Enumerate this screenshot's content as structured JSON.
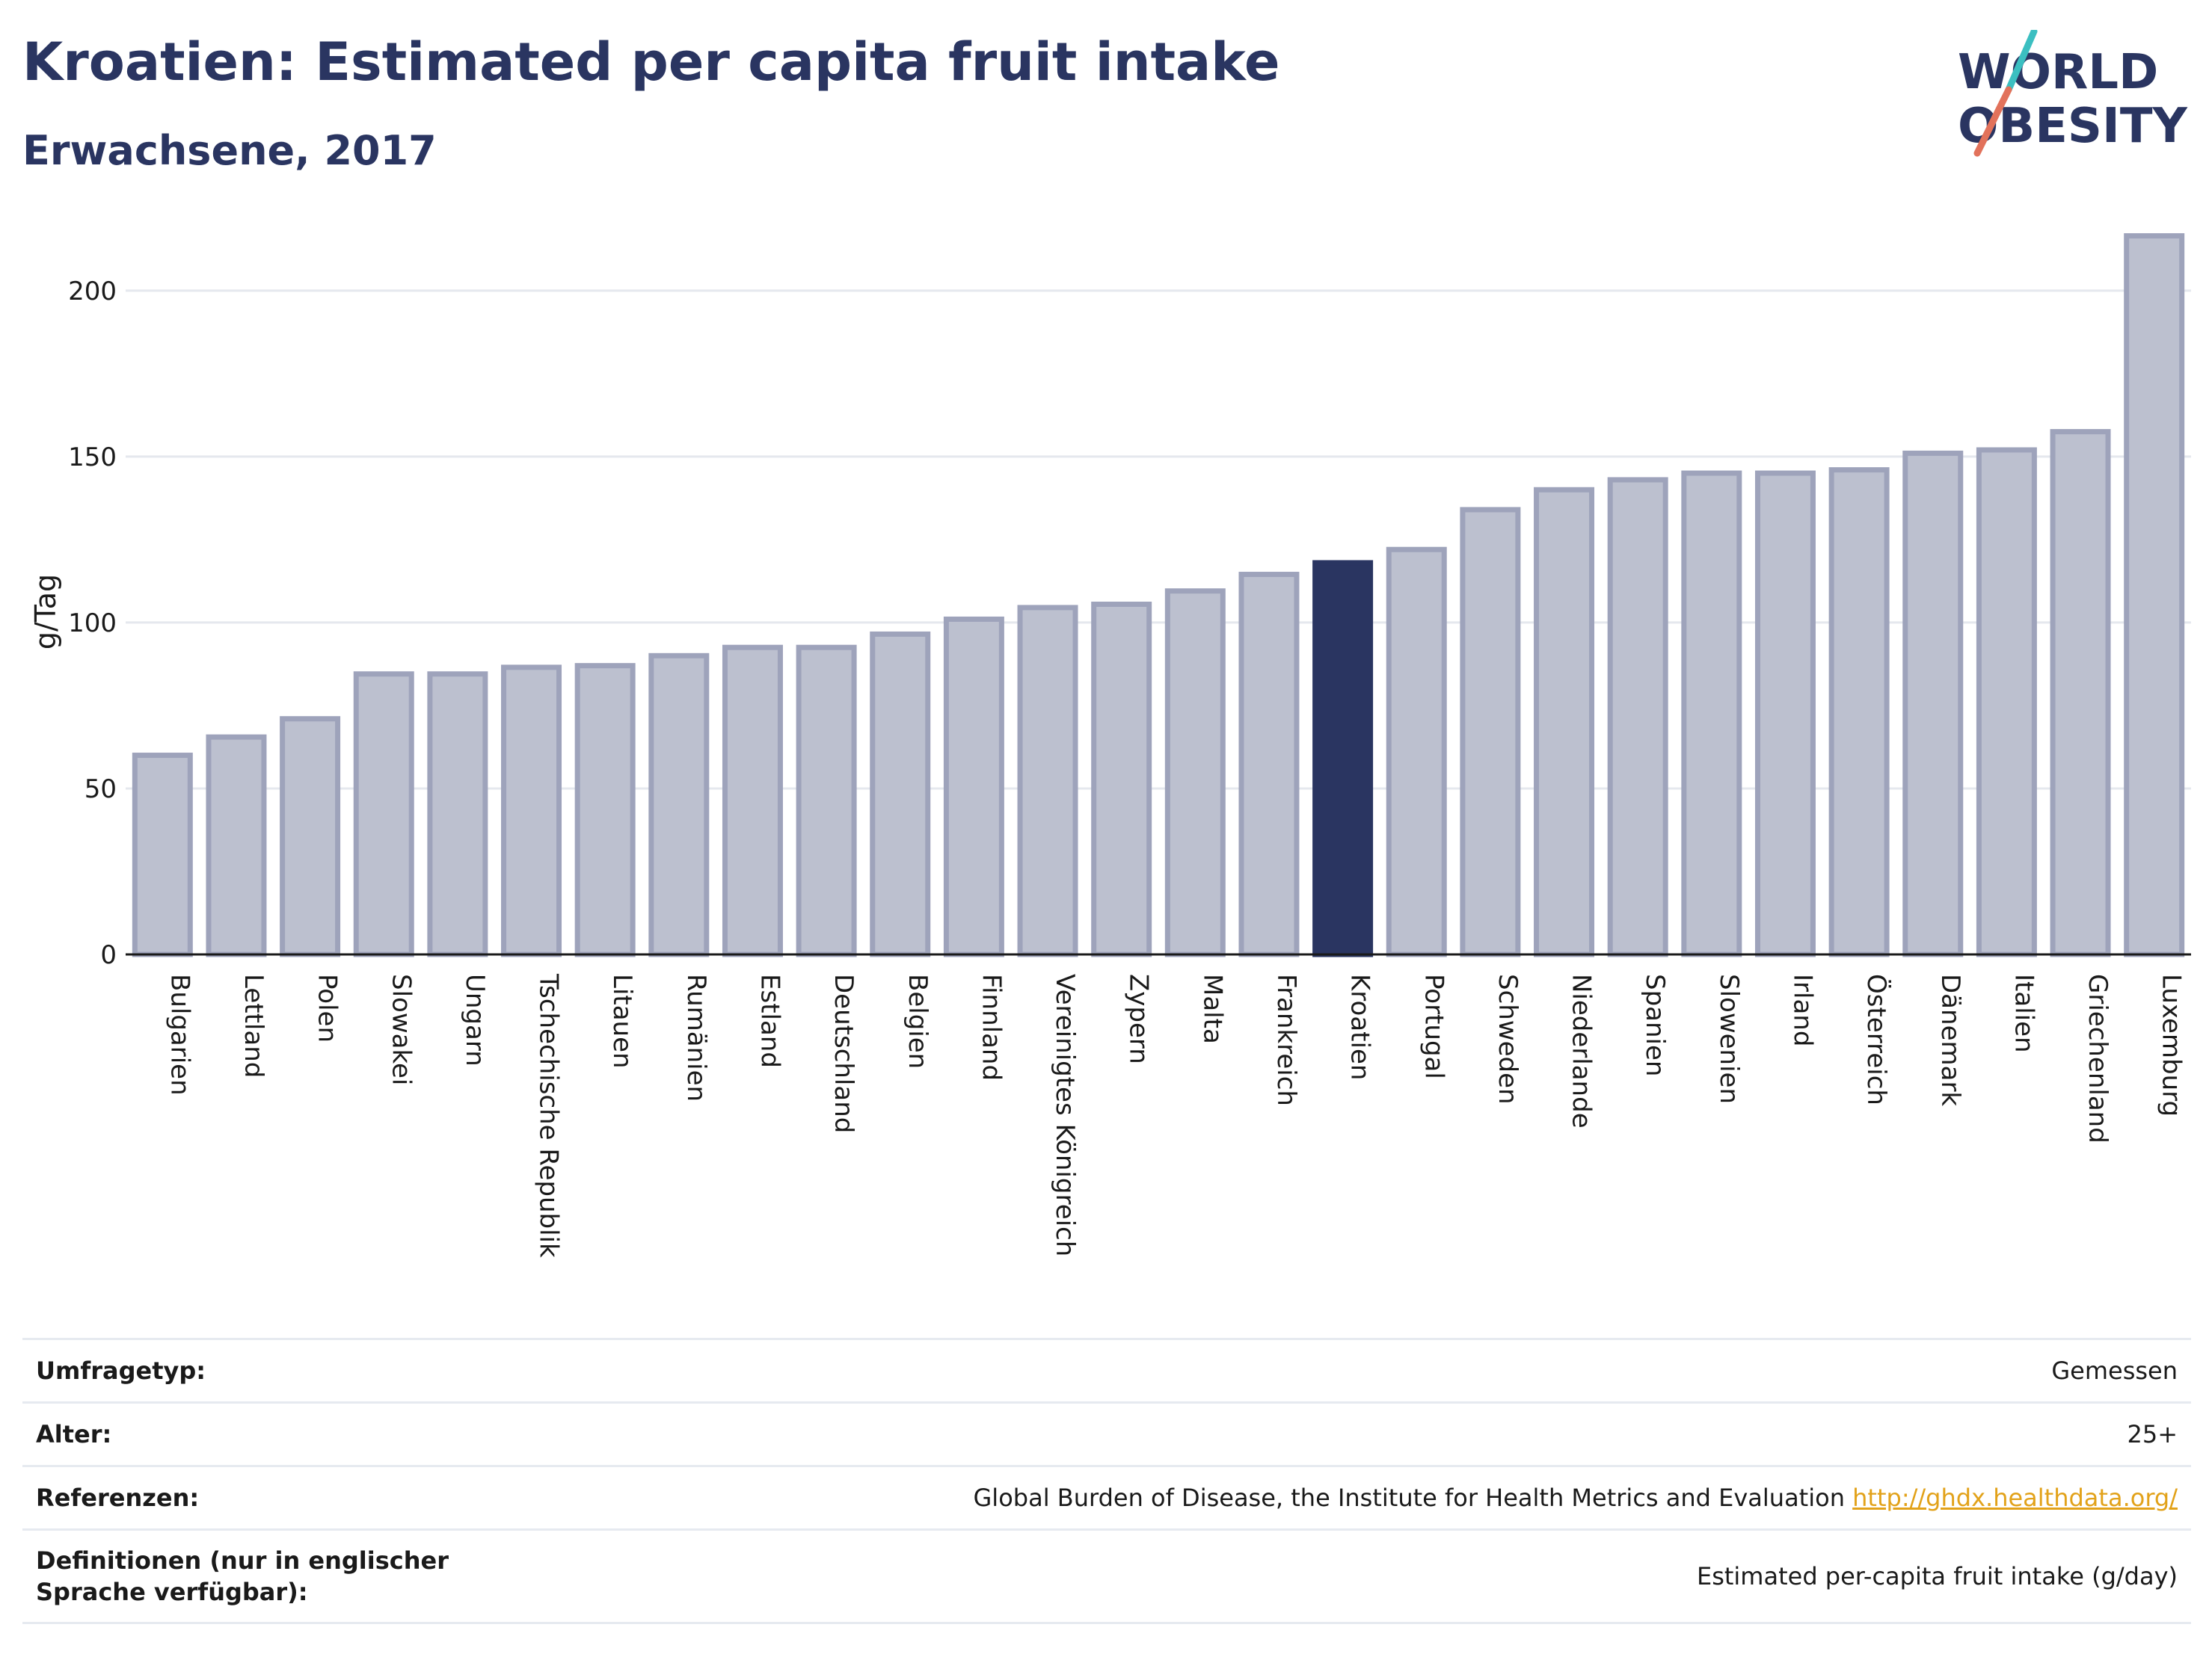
{
  "header": {
    "title": "Kroatien: Estimated per capita fruit intake",
    "subtitle": "Erwachsene, 2017"
  },
  "logo": {
    "line1": "WORLD",
    "line2": "OBESITY",
    "slash_colors": [
      "#3bbfc1",
      "#e2725b"
    ]
  },
  "colors": {
    "bar": "#bcc0cf",
    "bar_border": "#9ea3bb",
    "highlight": "#2a3561",
    "grid": "#e5e8ee",
    "text": "#2a3561"
  },
  "chart_data": {
    "type": "bar",
    "ylabel": "g/Tag",
    "ylim": [
      0,
      220
    ],
    "yticks": [
      0,
      50,
      100,
      150,
      200
    ],
    "grid": true,
    "highlight": "Kroatien",
    "categories": [
      "Bulgarien",
      "Lettland",
      "Polen",
      "Slowakei",
      "Ungarn",
      "Tschechische Republik",
      "Litauen",
      "Rumänien",
      "Estland",
      "Deutschland",
      "Belgien",
      "Finnland",
      "Vereinigtes Königreich",
      "Zypern",
      "Malta",
      "Frankreich",
      "Kroatien",
      "Portugal",
      "Schweden",
      "Niederlande",
      "Spanien",
      "Slowenien",
      "Irland",
      "Österreich",
      "Dänemark",
      "Italien",
      "Griechenland",
      "Luxemburg"
    ],
    "values": [
      60,
      65.5,
      71,
      84.5,
      84.5,
      86.5,
      87,
      90,
      92.5,
      92.5,
      96.5,
      101,
      104.5,
      105.5,
      109.5,
      114.5,
      118,
      122,
      134,
      140,
      143,
      145,
      145,
      146,
      151,
      152,
      157.5,
      216.5
    ]
  },
  "meta": [
    {
      "label": "Umfragetyp:",
      "value": "Gemessen"
    },
    {
      "label": "Alter:",
      "value": "25+"
    },
    {
      "label": "Referenzen:",
      "value": "Global Burden of Disease, the Institute for Health Metrics and Evaluation",
      "link": "http://ghdx.healthdata.org/"
    },
    {
      "label": "Definitionen (nur in englischer Sprache verfügbar):",
      "value": "Estimated per-capita fruit intake (g/day)"
    }
  ]
}
